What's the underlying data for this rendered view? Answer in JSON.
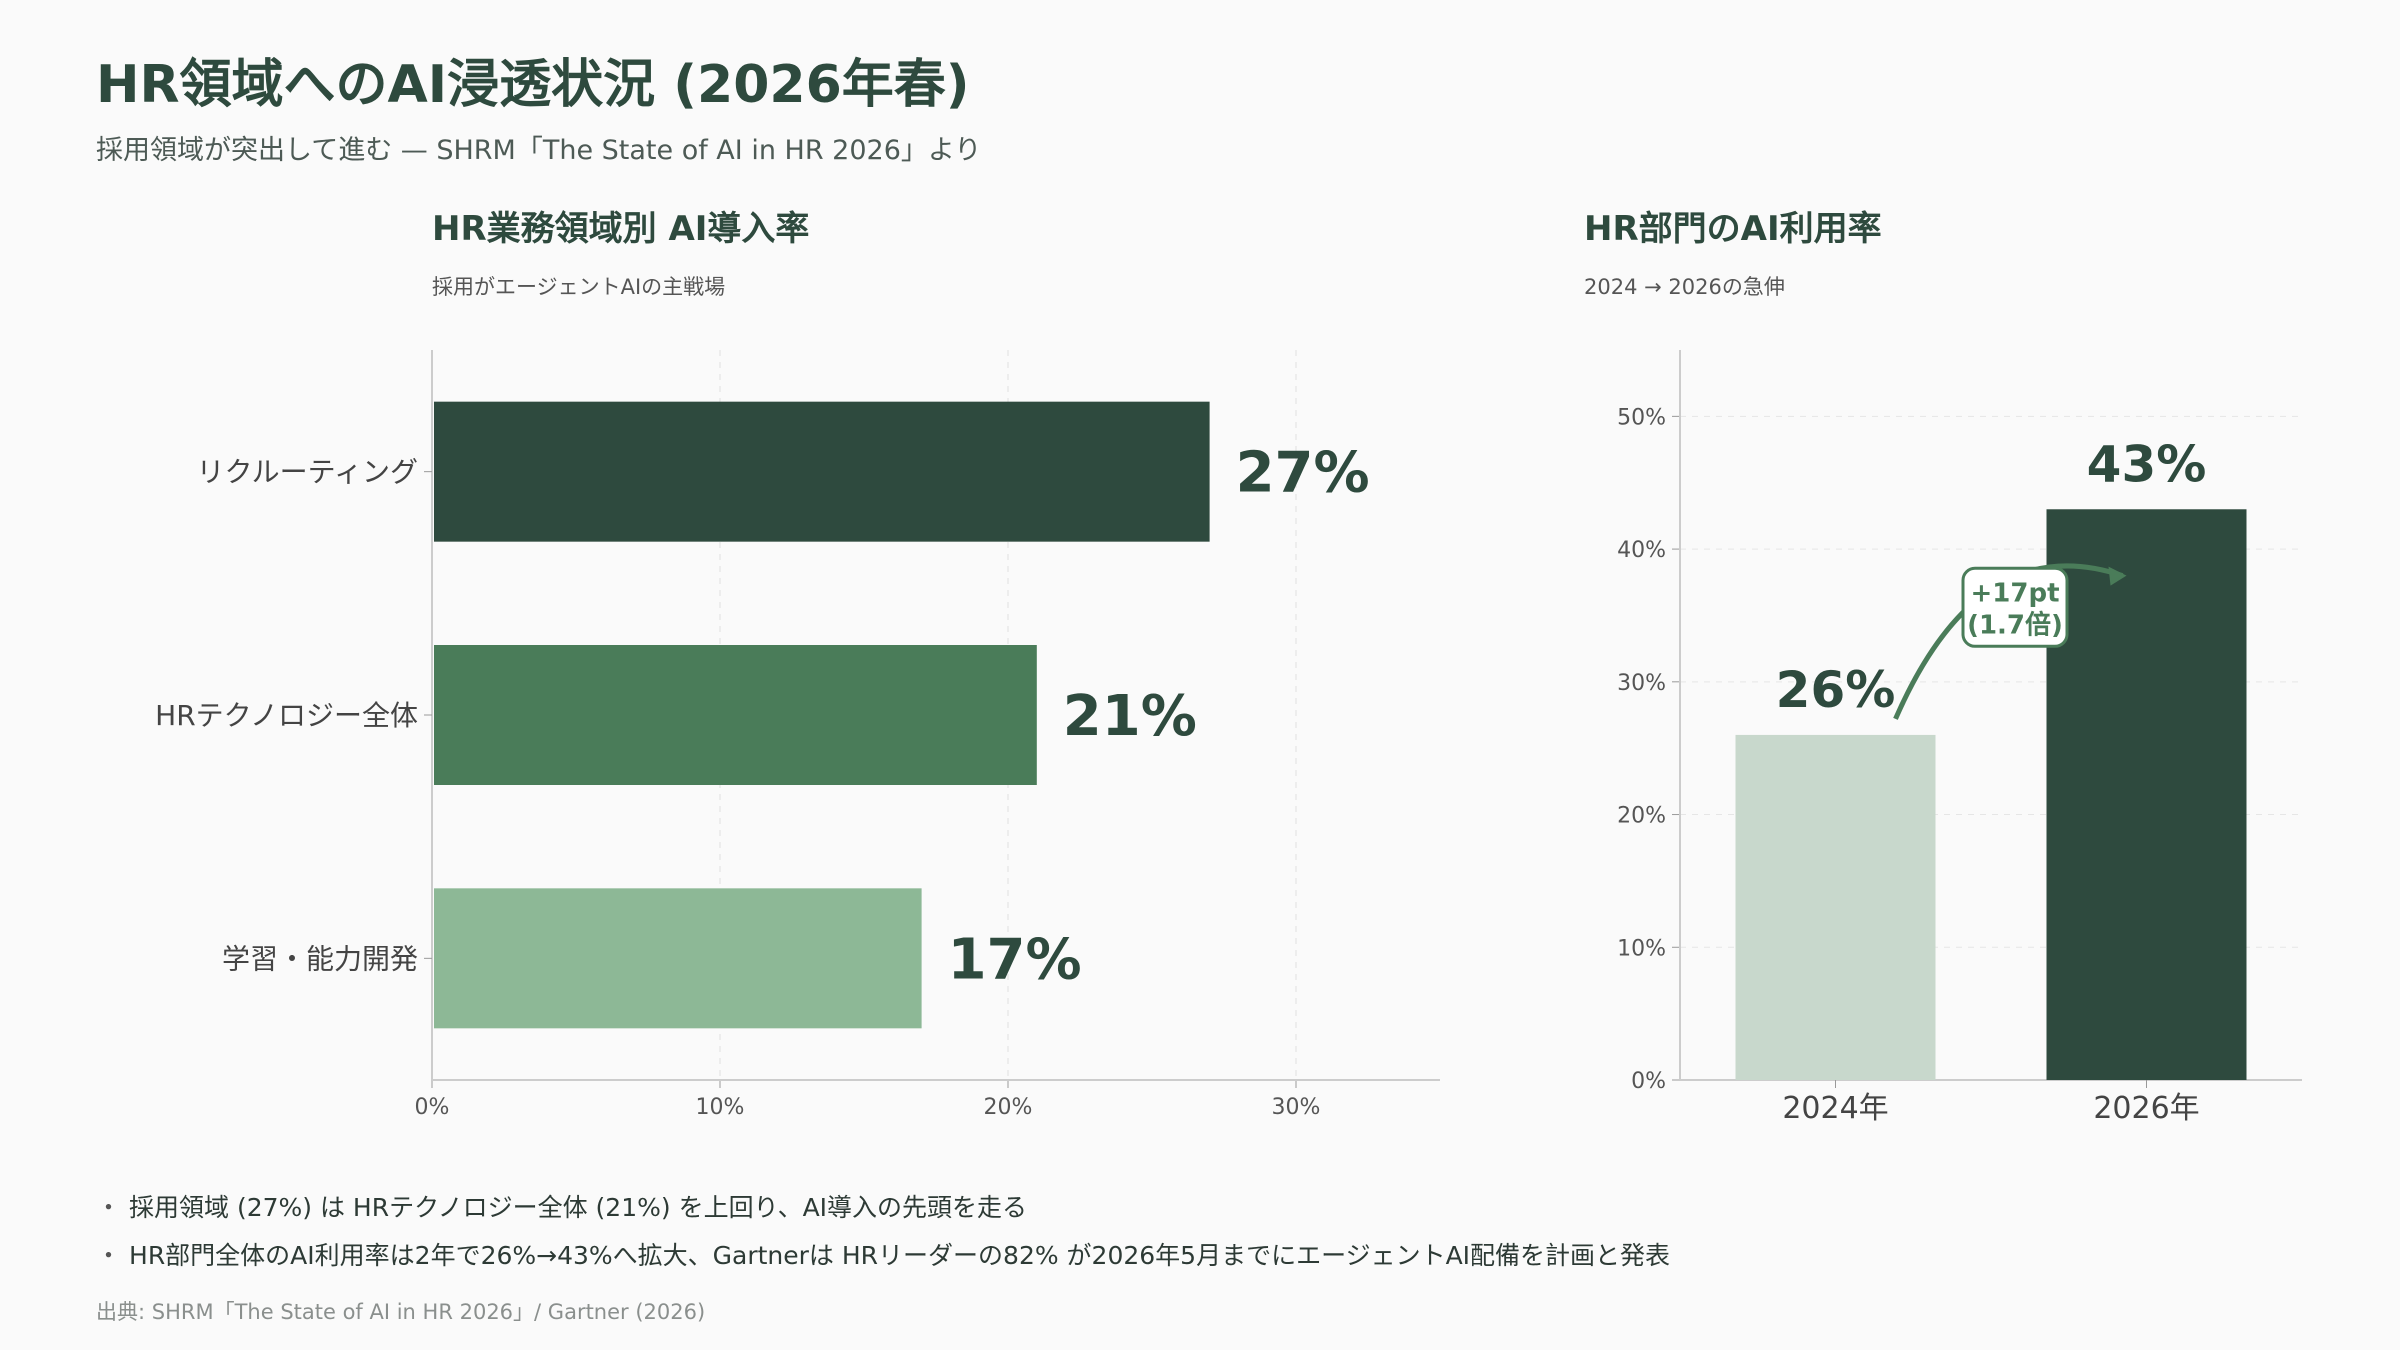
{
  "page": {
    "title": "HR領域へのAI浸透状況 (2026年春)",
    "subtitle": "採用領域が突出して進む — SHRM「The State of AI in HR 2026」より",
    "notes": [
      "採用領域 (27%) は HRテクノロジー全体 (21%) を上回り、AI導入の先頭を走る",
      "HR部門全体のAI利用率は2年で26%→43%へ拡大、Gartnerは HRリーダーの82% が2026年5月までにエージェントAI配備を計画と発表"
    ],
    "note_bullet": "・",
    "source": "出典: SHRM「The State of AI in HR 2026」/ Gartner (2026)"
  },
  "colors": {
    "dark": "#2e4a3e",
    "mid": "#4a7c59",
    "light": "#8db896",
    "pale": "#c8d8cc",
    "accent": "#4a7c59"
  },
  "chart_data": [
    {
      "type": "bar",
      "orientation": "horizontal",
      "title": "HR業務領域別 AI導入率",
      "subtitle": "採用がエージェントAIの主戦場",
      "categories": [
        "リクルーティング",
        "HRテクノロジー全体",
        "学習・能力開発"
      ],
      "values": [
        27,
        21,
        17
      ],
      "data_labels": [
        "27%",
        "21%",
        "17%"
      ],
      "bar_colors": [
        "#2e4a3e",
        "#4a7c59",
        "#8db896"
      ],
      "xlim": [
        0,
        35
      ],
      "xticks": [
        0,
        10,
        20,
        30
      ],
      "xtick_labels": [
        "0%",
        "10%",
        "20%",
        "30%"
      ],
      "grid": true
    },
    {
      "type": "bar",
      "orientation": "vertical",
      "title": "HR部門のAI利用率",
      "subtitle": "2024 → 2026の急伸",
      "categories": [
        "2024年",
        "2026年"
      ],
      "values": [
        26,
        43
      ],
      "data_labels": [
        "26%",
        "43%"
      ],
      "bar_colors": [
        "#c8d8cc",
        "#2e4a3e"
      ],
      "ylim": [
        0,
        55
      ],
      "yticks": [
        0,
        10,
        20,
        30,
        40,
        50
      ],
      "ytick_labels": [
        "0%",
        "10%",
        "20%",
        "30%",
        "40%",
        "50%"
      ],
      "grid": true,
      "annotation": {
        "line1": "+17pt",
        "line2": "(1.7倍)"
      }
    }
  ]
}
